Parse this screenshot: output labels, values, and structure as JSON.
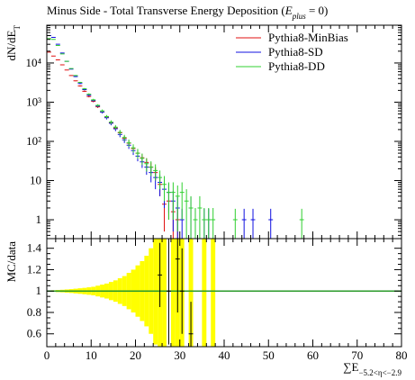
{
  "chart_data": {
    "type": "histogram-ratio",
    "title_parts": [
      "Minus Side - Total Transverse Energy Deposition (",
      "E",
      "plus",
      " = 0)"
    ],
    "ylabel_parts": [
      "dN/dE",
      "T"
    ],
    "xlabel_parts": [
      "∑E",
      "−5.2<η<−2.9"
    ],
    "ratio_ylabel": "MC/data",
    "xlim": [
      0,
      80
    ],
    "xticks": [
      0,
      10,
      20,
      30,
      40,
      50,
      60,
      70,
      80
    ],
    "ylim": [
      0.33,
      92000
    ],
    "log_y": true,
    "yticks": [
      1,
      10,
      {
        "value": 100,
        "label": "10²"
      },
      {
        "value": 1000,
        "label": "10³"
      },
      {
        "value": 10000,
        "label": "10⁴"
      }
    ],
    "ratio_ylim": [
      0.48,
      1.49
    ],
    "ratio_yticks": [
      0.6,
      0.8,
      1,
      1.2,
      1.4
    ],
    "legend": "top-right",
    "x": [
      0.5,
      1.5,
      2.5,
      3.5,
      4.5,
      5.5,
      6.5,
      7.5,
      8.5,
      9.5,
      10.5,
      11.5,
      12.5,
      13.5,
      14.5,
      15.5,
      16.5,
      17.5,
      18.5,
      19.5,
      20.5,
      21.5,
      22.5,
      23.5,
      24.5,
      25.5,
      26.5,
      27.5,
      28.5,
      29.5,
      30.5,
      31.5,
      32.5,
      33.5,
      34.5,
      35.5,
      36.5,
      37.5,
      38.5,
      39.5,
      40.5,
      41.5,
      42.5,
      43.5,
      44.5,
      45.5,
      46.5,
      47.5,
      48.5,
      49.5,
      50.5,
      51.5,
      52.5,
      53.5,
      54.5,
      55.5,
      56.5,
      57.5
    ],
    "series": [
      {
        "name": "Pythia8-MinBias",
        "color": "#e01010",
        "values": [
          19000,
          15000,
          12000,
          9000,
          6600,
          4800,
          3500,
          2600,
          1900,
          1400,
          1050,
          760,
          560,
          420,
          300,
          220,
          165,
          120,
          90,
          66,
          50,
          38,
          29,
          22,
          16,
          8,
          2.5,
          3,
          1.6,
          1,
          null,
          null,
          null,
          null,
          null,
          null,
          null,
          null,
          null,
          null,
          null,
          null,
          null,
          null,
          null,
          null,
          null,
          null,
          null,
          null,
          null,
          null,
          null,
          null,
          null,
          null,
          null,
          null
        ],
        "errors": [
          300,
          250,
          220,
          180,
          150,
          130,
          110,
          90,
          80,
          70,
          60,
          50,
          40,
          35,
          30,
          25,
          20,
          17,
          14,
          12,
          10,
          9,
          8,
          7,
          6,
          4,
          2,
          2,
          1.3,
          0.9,
          null,
          null,
          null,
          null,
          null,
          null,
          null,
          null,
          null,
          null,
          null,
          null,
          null,
          null,
          null,
          null,
          null,
          null,
          null,
          null,
          null,
          null,
          null,
          null,
          null,
          null,
          null,
          null
        ]
      },
      {
        "name": "Pythia8-SD",
        "color": "#1010e0",
        "values": [
          50000,
          45000,
          30000,
          18000,
          11000,
          7000,
          4500,
          3000,
          2100,
          1500,
          1100,
          800,
          560,
          400,
          290,
          210,
          150,
          110,
          80,
          58,
          42,
          30,
          22,
          16,
          12,
          9,
          6,
          5,
          3,
          2,
          1,
          null,
          2,
          1,
          null,
          1,
          1,
          null,
          null,
          null,
          null,
          null,
          null,
          null,
          1,
          null,
          1,
          null,
          null,
          null,
          1,
          null,
          null,
          null,
          null,
          null,
          null,
          null
        ],
        "errors": [
          500,
          450,
          350,
          270,
          210,
          170,
          130,
          110,
          90,
          75,
          65,
          55,
          45,
          38,
          32,
          27,
          22,
          19,
          16,
          13,
          11,
          9,
          8,
          7,
          6,
          5,
          4,
          3.5,
          2.5,
          1.8,
          0.9,
          null,
          1.8,
          0.9,
          null,
          0.9,
          0.9,
          null,
          null,
          null,
          null,
          null,
          null,
          null,
          0.9,
          null,
          0.9,
          null,
          null,
          null,
          0.9,
          null,
          null,
          null,
          null,
          null,
          null,
          null
        ]
      },
      {
        "name": "Pythia8-DD",
        "color": "#30d030",
        "values": [
          42000,
          40000,
          28000,
          17000,
          11000,
          7200,
          4800,
          3200,
          2200,
          1600,
          1150,
          830,
          600,
          430,
          310,
          230,
          170,
          125,
          92,
          68,
          50,
          37,
          27,
          22,
          18,
          12,
          8,
          5,
          5,
          4,
          5,
          3,
          2,
          1,
          2,
          1,
          1,
          1,
          null,
          null,
          null,
          null,
          1,
          null,
          null,
          null,
          null,
          null,
          null,
          null,
          null,
          null,
          null,
          null,
          null,
          null,
          null,
          1
        ],
        "errors": [
          450,
          440,
          330,
          260,
          210,
          170,
          140,
          115,
          95,
          80,
          68,
          58,
          49,
          41,
          35,
          30,
          26,
          22,
          19,
          16,
          14,
          12,
          10,
          9,
          8,
          6,
          5,
          4,
          4,
          3.5,
          4,
          3,
          2,
          1,
          2,
          1,
          1,
          1,
          null,
          null,
          null,
          null,
          0.9,
          null,
          null,
          null,
          null,
          null,
          null,
          null,
          null,
          null,
          null,
          null,
          null,
          null,
          null,
          0.9
        ]
      }
    ],
    "ratio_band": {
      "color": "#ffff00",
      "values": [
        0.005,
        0.007,
        0.01,
        0.012,
        0.015,
        0.018,
        0.022,
        0.026,
        0.03,
        0.035,
        0.04,
        0.05,
        0.06,
        0.07,
        0.085,
        0.1,
        0.12,
        0.14,
        0.17,
        0.2,
        0.24,
        0.28,
        0.33,
        0.4,
        0.5,
        1,
        1,
        null,
        1,
        1,
        1,
        null,
        1,
        null,
        null,
        1,
        null,
        1,
        null,
        null,
        null,
        null,
        null,
        null,
        null,
        null,
        null,
        null,
        null,
        null,
        null,
        null,
        null,
        null,
        null,
        null,
        null,
        null
      ]
    },
    "ratio_line": {
      "value": 1,
      "color": "#2a9a2a"
    },
    "ratio_points": {
      "color": "#000000",
      "x": [
        25.5,
        27.5,
        29.5,
        30.5,
        32.5
      ],
      "values": [
        1.15,
        1.0,
        1.3,
        1.0,
        0.6
      ],
      "errors": [
        0.3,
        0.5,
        0.5,
        0.4,
        0.3
      ]
    }
  }
}
